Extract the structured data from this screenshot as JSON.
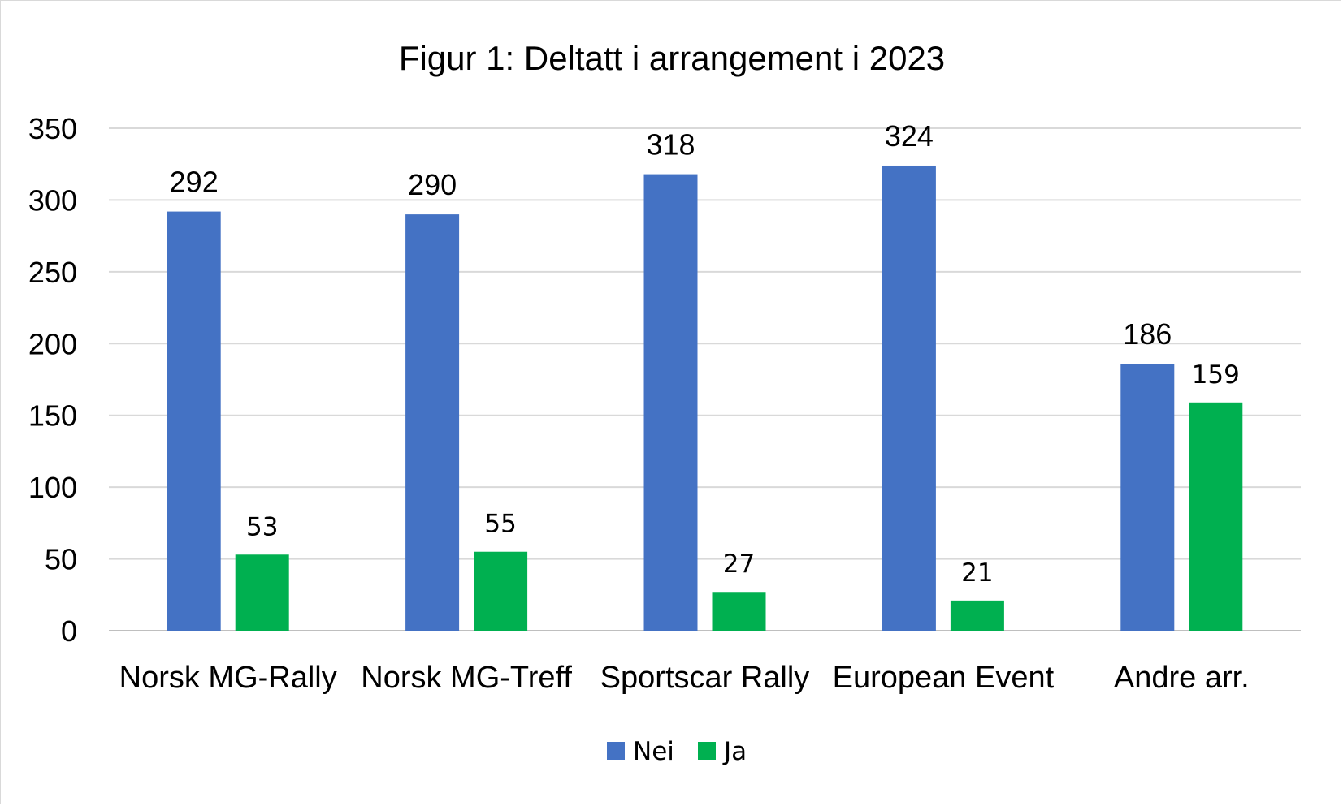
{
  "chart_data": {
    "type": "bar",
    "title": "Figur 1: Deltatt i arrangement i 2023",
    "categories": [
      "Norsk MG-Rally",
      "Norsk MG-Treff",
      "Sportscar Rally",
      "European Event",
      "Andre arr."
    ],
    "series": [
      {
        "name": "Nei",
        "values": [
          292,
          290,
          318,
          324,
          186
        ],
        "color": "#4472C4"
      },
      {
        "name": "Ja",
        "values": [
          53,
          55,
          27,
          21,
          159
        ],
        "color": "#00B050"
      }
    ],
    "ylim": [
      0,
      350
    ],
    "yticks": [
      0,
      50,
      100,
      150,
      200,
      250,
      300,
      350
    ],
    "grid": true,
    "legend_position": "bottom",
    "data_labels": true
  }
}
